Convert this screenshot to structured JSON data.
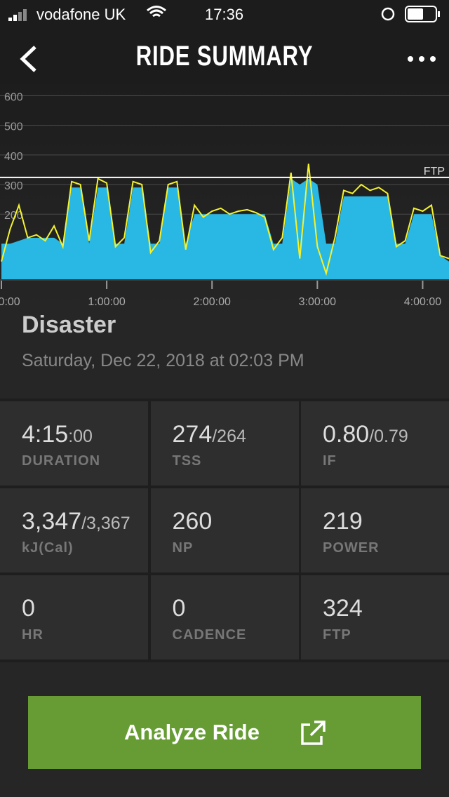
{
  "status_bar": {
    "carrier": "vodafone UK",
    "time": "17:36"
  },
  "header": {
    "title": "RIDE SUMMARY"
  },
  "chart_data": {
    "type": "area",
    "x": [
      0,
      5,
      10,
      15,
      20,
      25,
      30,
      35,
      40,
      45,
      50,
      55,
      60,
      65,
      70,
      75,
      80,
      85,
      90,
      95,
      100,
      105,
      110,
      115,
      120,
      125,
      130,
      135,
      140,
      145,
      150,
      155,
      160,
      165,
      170,
      175,
      180,
      185,
      190,
      195,
      200,
      205,
      210,
      215,
      220,
      225,
      230,
      235,
      240,
      245,
      250,
      255
    ],
    "series": [
      {
        "color": "#29b8e3",
        "values": [
          100,
          100,
          110,
          120,
          120,
          120,
          120,
          100,
          290,
          290,
          100,
          290,
          290,
          100,
          100,
          290,
          290,
          100,
          100,
          290,
          290,
          100,
          200,
          200,
          200,
          200,
          200,
          200,
          200,
          200,
          200,
          100,
          100,
          320,
          300,
          320,
          300,
          100,
          100,
          260,
          260,
          260,
          260,
          260,
          260,
          100,
          100,
          200,
          200,
          200,
          60,
          40
        ]
      },
      {
        "color": "#f4f22e",
        "values": [
          40,
          150,
          230,
          120,
          130,
          110,
          160,
          90,
          310,
          300,
          110,
          320,
          305,
          90,
          120,
          310,
          300,
          70,
          110,
          300,
          310,
          80,
          230,
          190,
          210,
          220,
          200,
          210,
          215,
          205,
          190,
          80,
          120,
          340,
          50,
          370,
          90,
          0,
          120,
          280,
          270,
          300,
          280,
          290,
          270,
          90,
          110,
          220,
          210,
          230,
          60,
          50
        ]
      }
    ],
    "xlim": [
      0,
      255
    ],
    "xticks": [
      {
        "value": 0,
        "label": "0:00:00"
      },
      {
        "value": 60,
        "label": "1:00:00"
      },
      {
        "value": 120,
        "label": "2:00:00"
      },
      {
        "value": 180,
        "label": "3:00:00"
      },
      {
        "value": 240,
        "label": "4:00:00"
      }
    ],
    "ylim": [
      -20,
      620
    ],
    "yticks": [
      200,
      300,
      400,
      500,
      600
    ],
    "grid": true,
    "reference_line": {
      "value": 324,
      "label": "FTP"
    }
  },
  "ride": {
    "name": "Disaster",
    "date": "Saturday, Dec 22, 2018 at 02:03 PM"
  },
  "stats": [
    {
      "value": "4:15",
      "suffix": ":00",
      "label": "DURATION"
    },
    {
      "value": "274",
      "suffix": "/264",
      "label": "TSS"
    },
    {
      "value": "0.80",
      "suffix": "/0.79",
      "label": "IF"
    },
    {
      "value": "3,347",
      "suffix": "/3,367",
      "label": "kJ(Cal)"
    },
    {
      "value": "260",
      "label": "NP"
    },
    {
      "value": "219",
      "label": "POWER"
    },
    {
      "value": "0",
      "label": "HR"
    },
    {
      "value": "0",
      "label": "CADENCE"
    },
    {
      "value": "324",
      "label": "FTP"
    }
  ],
  "button": {
    "label": "Analyze Ride"
  }
}
